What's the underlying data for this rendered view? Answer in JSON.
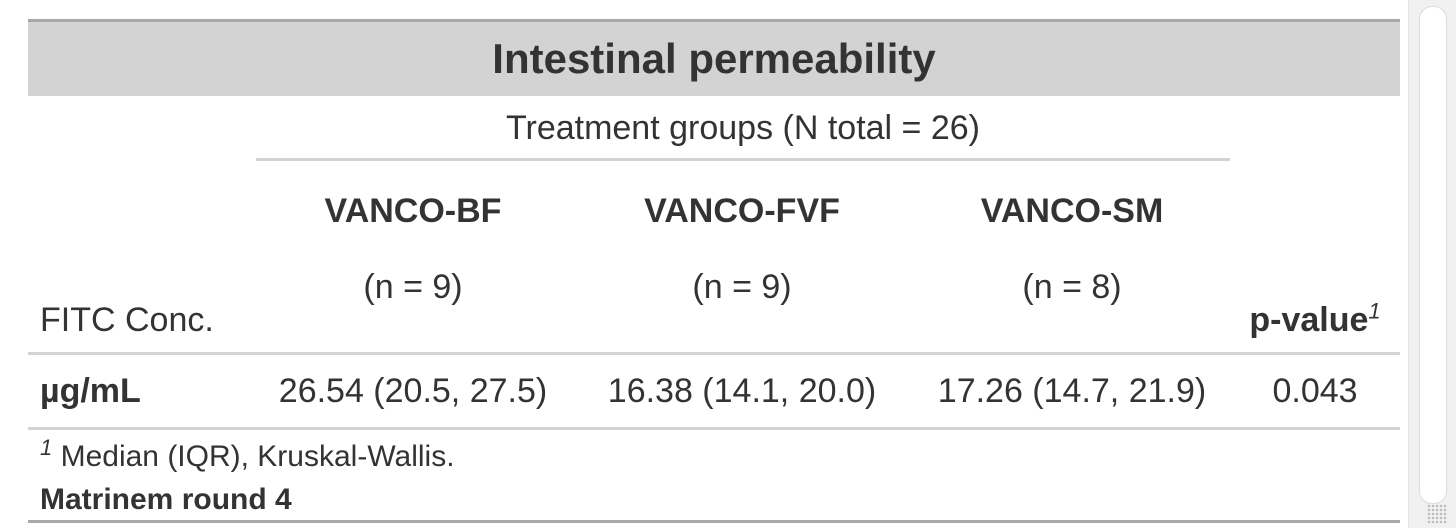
{
  "table": {
    "title": "Intestinal permeability",
    "spanner": "Treatment groups (N total = 26)",
    "stub_header": "FITC Conc.",
    "columns": [
      {
        "name": "VANCO-BF",
        "n": "(n = 9)"
      },
      {
        "name": "VANCO-FVF",
        "n": "(n = 9)"
      },
      {
        "name": "VANCO-SM",
        "n": "(n = 8)"
      }
    ],
    "pvalue_header": "p-value",
    "pvalue_footmark": "1",
    "rows": [
      {
        "label": "µg/mL",
        "values": [
          "26.54 (20.5, 27.5)",
          "16.38 (14.1, 20.0)",
          "17.26 (14.7, 21.9)"
        ],
        "pvalue": "0.043"
      }
    ],
    "footnote_mark": "1",
    "footnote_text": " Median (IQR), Kruskal-Wallis.",
    "source_note": "Matrinem round 4"
  },
  "colors": {
    "title_bg": "#d3d3d3",
    "rule": "#d3d3d3",
    "outer_rule": "#a8a8a8",
    "text": "#333333"
  }
}
